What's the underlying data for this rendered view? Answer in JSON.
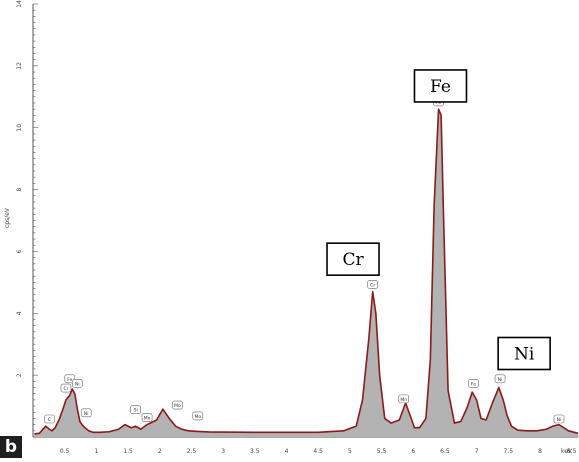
{
  "panel_label": "b",
  "chart_data": {
    "type": "area",
    "title": "",
    "xlabel": "keV",
    "ylabel": "cps/eV",
    "xlim": [
      0,
      8.6
    ],
    "ylim": [
      0,
      14
    ],
    "grid": false,
    "legend": "none",
    "x_ticks": [
      "0.5",
      "1",
      "1.5",
      "2",
      "2.5",
      "3",
      "3.5",
      "4",
      "4.5",
      "5",
      "5.5",
      "6",
      "6.5",
      "7",
      "7.5",
      "8",
      "8.5"
    ],
    "x_tick_values": [
      0.5,
      1,
      1.5,
      2,
      2.5,
      3,
      3.5,
      4,
      4.5,
      5,
      5.5,
      6,
      6.5,
      7,
      7.5,
      8,
      8.5
    ],
    "y_ticks": [
      "2",
      "4",
      "6",
      "8",
      "10",
      "12",
      "14"
    ],
    "y_tick_values": [
      2,
      4,
      6,
      8,
      10,
      12,
      14
    ],
    "series": [
      {
        "x": [
          0.02,
          0.1,
          0.2,
          0.26,
          0.3,
          0.35,
          0.42,
          0.48,
          0.52,
          0.58,
          0.62,
          0.66,
          0.7,
          0.74,
          0.78,
          0.82,
          0.88,
          0.95,
          1.05,
          1.2,
          1.35,
          1.45,
          1.55,
          1.62,
          1.7,
          1.8,
          1.95,
          2.05,
          2.15,
          2.25,
          2.35,
          2.45,
          2.6,
          2.8,
          3.0,
          3.5,
          4.0,
          4.5,
          4.9,
          5.1,
          5.2,
          5.3,
          5.36,
          5.41,
          5.47,
          5.55,
          5.65,
          5.78,
          5.88,
          5.95,
          6.02,
          6.1,
          6.2,
          6.27,
          6.33,
          6.4,
          6.44,
          6.48,
          6.55,
          6.65,
          6.75,
          6.85,
          6.93,
          7.0,
          7.07,
          7.15,
          7.25,
          7.35,
          7.42,
          7.48,
          7.55,
          7.65,
          7.8,
          7.95,
          8.1,
          8.2,
          8.3,
          8.45,
          8.6
        ],
        "values": [
          0.1,
          0.12,
          0.35,
          0.25,
          0.2,
          0.3,
          0.6,
          0.95,
          1.2,
          1.35,
          1.55,
          1.4,
          0.9,
          0.5,
          0.38,
          0.3,
          0.2,
          0.15,
          0.15,
          0.17,
          0.25,
          0.4,
          0.3,
          0.35,
          0.25,
          0.4,
          0.55,
          0.9,
          0.6,
          0.35,
          0.25,
          0.2,
          0.18,
          0.16,
          0.16,
          0.15,
          0.15,
          0.15,
          0.2,
          0.35,
          1.2,
          3.2,
          4.7,
          4.0,
          2.0,
          0.6,
          0.45,
          0.55,
          1.1,
          0.7,
          0.3,
          0.3,
          0.6,
          2.5,
          7.5,
          10.6,
          10.4,
          7.0,
          1.5,
          0.45,
          0.5,
          0.95,
          1.45,
          1.2,
          0.6,
          0.55,
          1.1,
          1.6,
          1.2,
          0.7,
          0.35,
          0.22,
          0.2,
          0.2,
          0.25,
          0.35,
          0.4,
          0.2,
          0.12
        ]
      }
    ],
    "element_labels": [
      {
        "text": "Cr",
        "x": 5.05,
        "y": 5.75
      },
      {
        "text": "Fe",
        "x": 6.43,
        "y": 11.35
      },
      {
        "text": "Ni",
        "x": 7.75,
        "y": 2.7
      }
    ],
    "peak_tags": [
      {
        "text": "C",
        "x": 0.26,
        "y": 0.55
      },
      {
        "text": "Cr",
        "x": 0.52,
        "y": 1.55
      },
      {
        "text": "Fe",
        "x": 0.58,
        "y": 1.85
      },
      {
        "text": "Ni",
        "x": 0.7,
        "y": 1.7
      },
      {
        "text": "Ni",
        "x": 0.84,
        "y": 0.75
      },
      {
        "text": "Si",
        "x": 1.62,
        "y": 0.85
      },
      {
        "text": "Mo",
        "x": 1.8,
        "y": 0.6
      },
      {
        "text": "Mo",
        "x": 2.28,
        "y": 1.0
      },
      {
        "text": "Mo",
        "x": 2.6,
        "y": 0.65
      },
      {
        "text": "Cr",
        "x": 5.36,
        "y": 4.9
      },
      {
        "text": "Mn",
        "x": 5.85,
        "y": 1.2
      },
      {
        "text": "Fe",
        "x": 6.4,
        "y": 10.8
      },
      {
        "text": "Fe",
        "x": 6.95,
        "y": 1.7
      },
      {
        "text": "Ni",
        "x": 7.37,
        "y": 1.85
      },
      {
        "text": "Ni",
        "x": 8.3,
        "y": 0.55
      }
    ],
    "colors": {
      "fill": "#b3b3b3",
      "line": "#8b1a1a",
      "axis": "#555555"
    }
  }
}
